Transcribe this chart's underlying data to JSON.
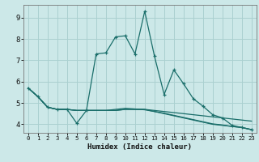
{
  "xlabel": "Humidex (Indice chaleur)",
  "background_color": "#cce8e8",
  "grid_color": "#aad0d0",
  "line_color": "#1a6e6a",
  "xlim": [
    -0.5,
    23.5
  ],
  "ylim": [
    3.6,
    9.6
  ],
  "xticks": [
    0,
    1,
    2,
    3,
    4,
    5,
    6,
    7,
    8,
    9,
    10,
    11,
    12,
    13,
    14,
    15,
    16,
    17,
    18,
    19,
    20,
    21,
    22,
    23
  ],
  "yticks": [
    4,
    5,
    6,
    7,
    8,
    9
  ],
  "series0": [
    5.7,
    5.3,
    4.8,
    4.7,
    4.7,
    4.05,
    4.65,
    7.3,
    7.35,
    8.1,
    8.15,
    7.3,
    9.3,
    7.2,
    5.4,
    6.55,
    5.9,
    5.2,
    4.85,
    4.45,
    4.3,
    3.95,
    3.85,
    3.75
  ],
  "series1": [
    5.7,
    5.3,
    4.8,
    4.7,
    4.7,
    4.65,
    4.65,
    4.65,
    4.65,
    4.65,
    4.7,
    4.7,
    4.7,
    4.65,
    4.6,
    4.55,
    4.5,
    4.45,
    4.4,
    4.35,
    4.3,
    4.25,
    4.2,
    4.15
  ],
  "series2": [
    5.7,
    5.3,
    4.8,
    4.7,
    4.7,
    4.65,
    4.65,
    4.65,
    4.65,
    4.65,
    4.7,
    4.7,
    4.7,
    4.6,
    4.5,
    4.4,
    4.3,
    4.2,
    4.1,
    4.0,
    3.95,
    3.9,
    3.85,
    3.75
  ],
  "series3": [
    5.7,
    5.3,
    4.8,
    4.7,
    4.7,
    4.65,
    4.65,
    4.65,
    4.65,
    4.7,
    4.75,
    4.72,
    4.68,
    4.6,
    4.52,
    4.42,
    4.32,
    4.22,
    4.12,
    4.02,
    3.97,
    3.9,
    3.85,
    3.75
  ]
}
